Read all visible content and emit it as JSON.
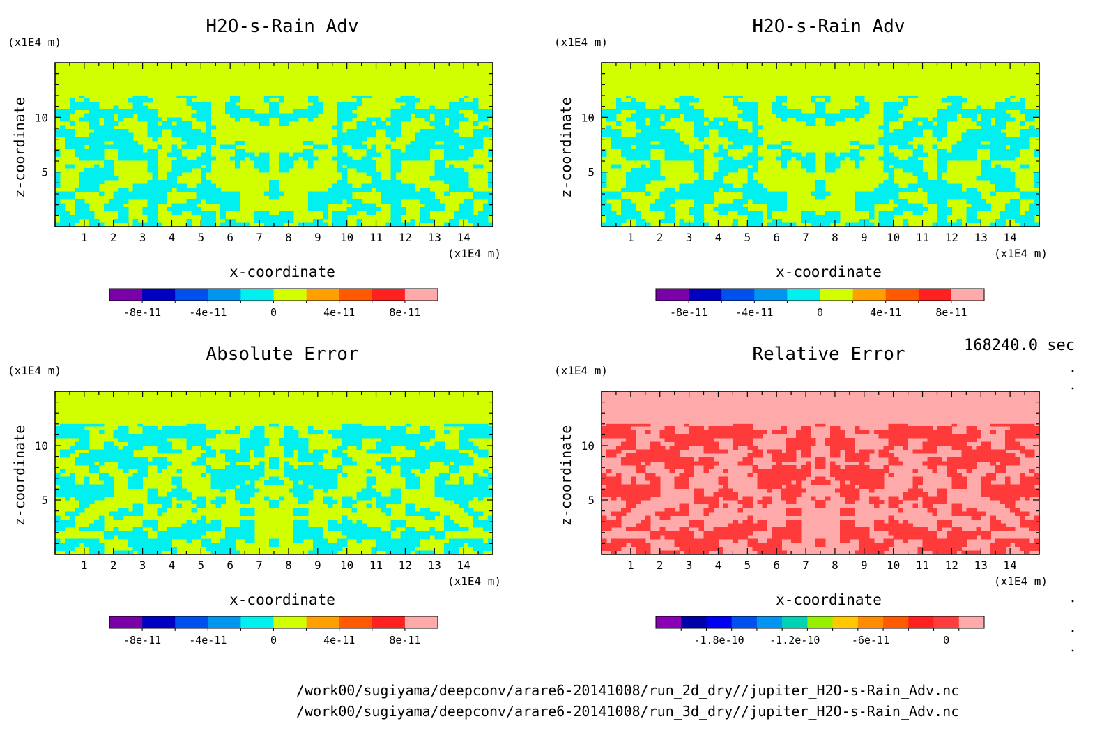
{
  "chart_data": [
    {
      "type": "heatmap",
      "title": "H2O-s-Rain_Adv",
      "xlabel": "x-coordinate",
      "ylabel": "z-coordinate",
      "x_unit": "(x1E4 m)",
      "y_unit": "(x1E4 m)",
      "xlim": [
        0,
        15
      ],
      "ylim": [
        0,
        15
      ],
      "xticks": [
        "1",
        "2",
        "3",
        "4",
        "5",
        "6",
        "7",
        "8",
        "9",
        "10",
        "11",
        "12",
        "13",
        "14"
      ],
      "yticks": [
        "5",
        "10"
      ],
      "palette": [
        "#7a00a8",
        "#0000c0",
        "#0050f0",
        "#0096f0",
        "#00f0f0",
        "#d2ff00",
        "#ffa000",
        "#ff5a00",
        "#ff2020",
        "#ffaaaa"
      ],
      "colorbar_labels": [
        "-8e-11",
        "-4e-11",
        "0",
        "4e-11",
        "8e-11"
      ],
      "fill_colors": [
        "#00f0f0",
        "#d2ff00"
      ],
      "top_layer_color": "#d2ff00"
    },
    {
      "type": "heatmap",
      "title": "H2O-s-Rain_Adv",
      "xlabel": "x-coordinate",
      "ylabel": "z-coordinate",
      "x_unit": "(x1E4 m)",
      "y_unit": "(x1E4 m)",
      "xlim": [
        0,
        15
      ],
      "ylim": [
        0,
        15
      ],
      "xticks": [
        "1",
        "2",
        "3",
        "4",
        "5",
        "6",
        "7",
        "8",
        "9",
        "10",
        "11",
        "12",
        "13",
        "14"
      ],
      "yticks": [
        "5",
        "10"
      ],
      "palette": [
        "#7a00a8",
        "#0000c0",
        "#0050f0",
        "#0096f0",
        "#00f0f0",
        "#d2ff00",
        "#ffa000",
        "#ff5a00",
        "#ff2020",
        "#ffaaaa"
      ],
      "colorbar_labels": [
        "-8e-11",
        "-4e-11",
        "0",
        "4e-11",
        "8e-11"
      ],
      "fill_colors": [
        "#00f0f0",
        "#d2ff00"
      ],
      "top_layer_color": "#d2ff00"
    },
    {
      "type": "heatmap",
      "title": "Absolute Error",
      "xlabel": "x-coordinate",
      "ylabel": "z-coordinate",
      "x_unit": "(x1E4 m)",
      "y_unit": "(x1E4 m)",
      "xlim": [
        0,
        15
      ],
      "ylim": [
        0,
        15
      ],
      "xticks": [
        "1",
        "2",
        "3",
        "4",
        "5",
        "6",
        "7",
        "8",
        "9",
        "10",
        "11",
        "12",
        "13",
        "14"
      ],
      "yticks": [
        "5",
        "10"
      ],
      "palette": [
        "#7a00a8",
        "#0000c0",
        "#0050f0",
        "#0096f0",
        "#00f0f0",
        "#d2ff00",
        "#ffa000",
        "#ff5a00",
        "#ff2020",
        "#ffaaaa"
      ],
      "colorbar_labels": [
        "-8e-11",
        "-4e-11",
        "0",
        "4e-11",
        "8e-11"
      ],
      "fill_colors": [
        "#00f0f0",
        "#d2ff00"
      ],
      "top_layer_color": "#d2ff00"
    },
    {
      "type": "heatmap",
      "title": "Relative Error",
      "xlabel": "x-coordinate",
      "ylabel": "z-coordinate",
      "x_unit": "(x1E4 m)",
      "y_unit": "(x1E4 m)",
      "xlim": [
        0,
        15
      ],
      "ylim": [
        0,
        15
      ],
      "xticks": [
        "1",
        "2",
        "3",
        "4",
        "5",
        "6",
        "7",
        "8",
        "9",
        "10",
        "11",
        "12",
        "13",
        "14"
      ],
      "yticks": [
        "5",
        "10"
      ],
      "palette": [
        "#8a00b4",
        "#0000a8",
        "#0000f0",
        "#0050f0",
        "#0096f0",
        "#00d2b4",
        "#96f000",
        "#ffc800",
        "#ff8c00",
        "#ff5a00",
        "#ff2020",
        "#ff3c3c",
        "#ffaaaa"
      ],
      "colorbar_labels": [
        "-1.8e-10",
        "-1.2e-10",
        "-6e-11",
        "0"
      ],
      "fill_colors": [
        "#ff3a3a",
        "#ffaaaa"
      ],
      "top_layer_color": "#ffaaaa"
    }
  ],
  "time_label": "168240.0 sec",
  "footer": {
    "line1": "/work00/sugiyama/deepconv/arare6-20141008/run_2d_dry//jupiter_H2O-s-Rain_Adv.nc",
    "line2": "/work00/sugiyama/deepconv/arare6-20141008/run_3d_dry//jupiter_H2O-s-Rain_Adv.nc"
  }
}
